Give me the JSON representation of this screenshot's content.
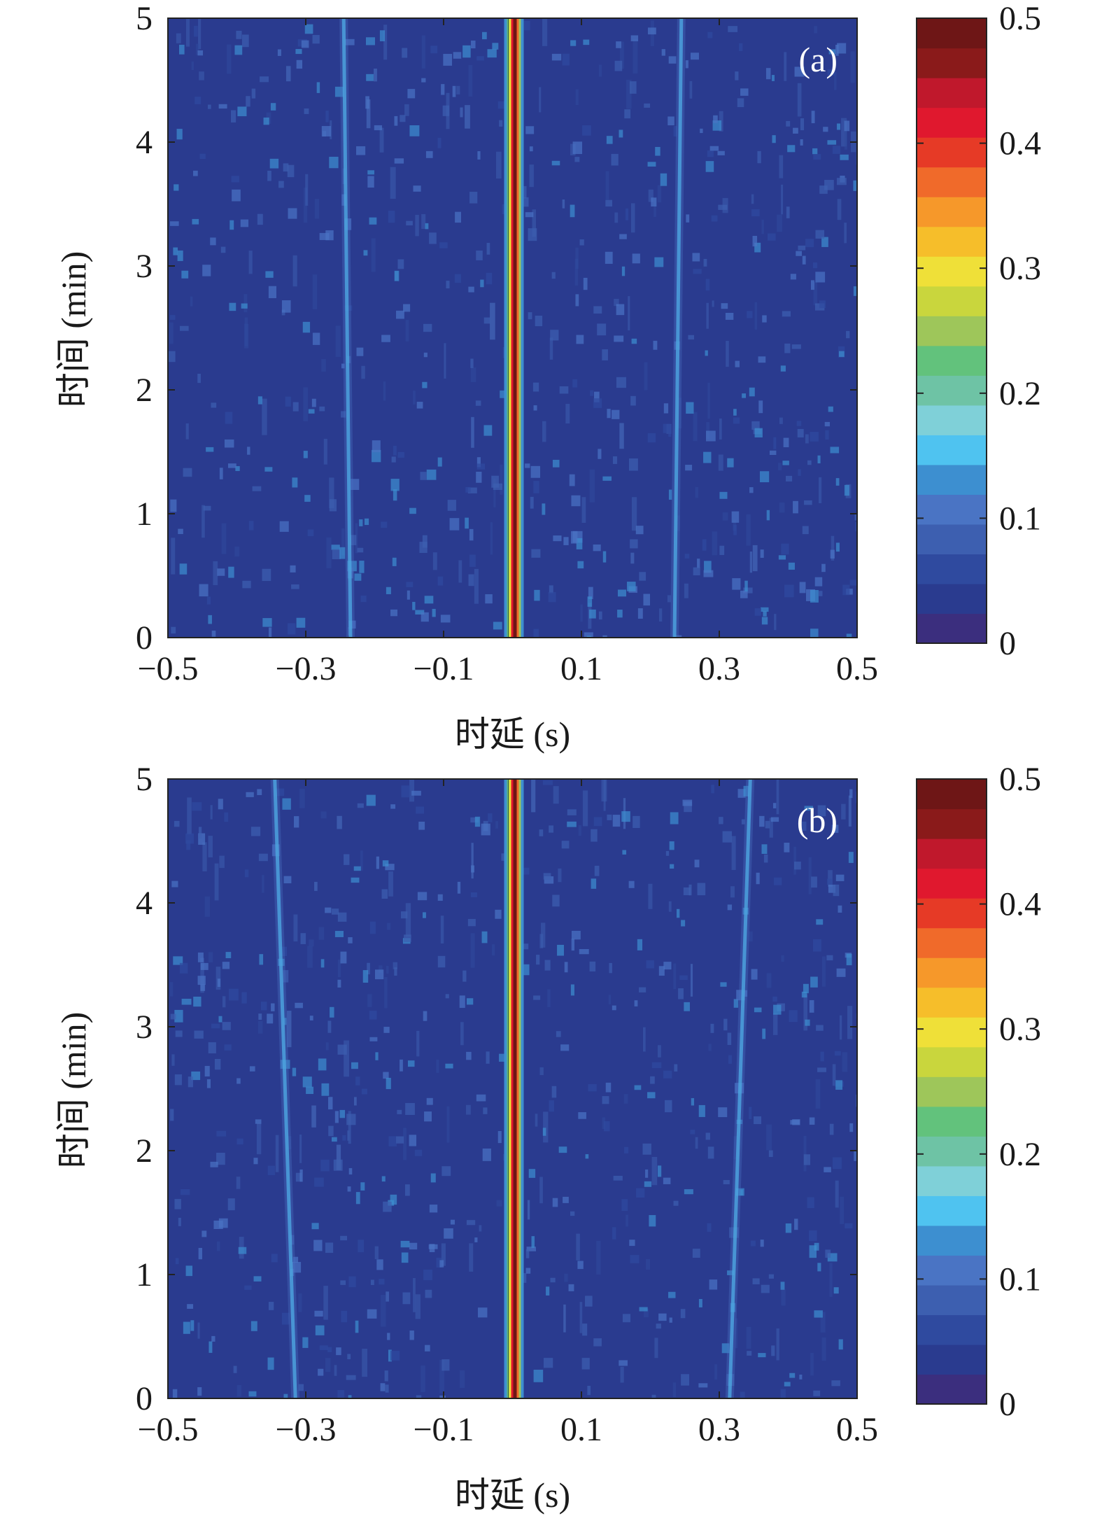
{
  "chart_data": [
    {
      "type": "heatmap",
      "panel_label": "(a)",
      "title": "",
      "xlabel": "时延 (s)",
      "ylabel": "时间 (min)",
      "xlim": [
        -0.5,
        0.5
      ],
      "ylim": [
        0,
        5
      ],
      "x_ticks": [
        -0.5,
        -0.3,
        -0.1,
        0.1,
        0.3,
        0.5
      ],
      "x_tick_labels": [
        "−0.5",
        "−0.3",
        "−0.1",
        "0.1",
        "0.3",
        "0.5"
      ],
      "y_ticks": [
        0,
        1,
        2,
        3,
        4,
        5
      ],
      "y_tick_labels": [
        "0",
        "1",
        "2",
        "3",
        "4",
        "5"
      ],
      "colorbar": {
        "range": [
          0,
          0.5
        ],
        "ticks": [
          0,
          0.1,
          0.2,
          0.3,
          0.4,
          0.5
        ],
        "tick_labels": [
          "0",
          "0.1",
          "0.2",
          "0.3",
          "0.4",
          "0.5"
        ]
      },
      "ridges": [
        {
          "name": "",
          "peak": 0.5,
          "points": [
            [
              0.0,
              0
            ],
            [
              0.0,
              5
            ]
          ]
        },
        {
          "name": "",
          "peak": 0.12,
          "points": [
            [
              -0.235,
              0
            ],
            [
              -0.24,
              2.5
            ],
            [
              -0.245,
              5
            ]
          ]
        },
        {
          "name": "",
          "peak": 0.12,
          "points": [
            [
              0.235,
              0
            ],
            [
              0.24,
              2.5
            ],
            [
              0.245,
              5
            ]
          ]
        }
      ]
    },
    {
      "type": "heatmap",
      "panel_label": "(b)",
      "title": "",
      "xlabel": "时延 (s)",
      "ylabel": "时间 (min)",
      "xlim": [
        -0.5,
        0.5
      ],
      "ylim": [
        0,
        5
      ],
      "x_ticks": [
        -0.5,
        -0.3,
        -0.1,
        0.1,
        0.3,
        0.5
      ],
      "x_tick_labels": [
        "−0.5",
        "−0.3",
        "−0.1",
        "0.1",
        "0.3",
        "0.5"
      ],
      "y_ticks": [
        0,
        1,
        2,
        3,
        4,
        5
      ],
      "y_tick_labels": [
        "0",
        "1",
        "2",
        "3",
        "4",
        "5"
      ],
      "colorbar": {
        "range": [
          0,
          0.5
        ],
        "ticks": [
          0,
          0.1,
          0.2,
          0.3,
          0.4,
          0.5
        ],
        "tick_labels": [
          "0",
          "0.1",
          "0.2",
          "0.3",
          "0.4",
          "0.5"
        ]
      },
      "ridges": [
        {
          "name": "",
          "peak": 0.5,
          "points": [
            [
              0.0,
              0
            ],
            [
              0.0,
              5
            ]
          ]
        },
        {
          "name": "",
          "peak": 0.12,
          "points": [
            [
              -0.315,
              0
            ],
            [
              -0.33,
              2.5
            ],
            [
              -0.345,
              5
            ]
          ]
        },
        {
          "name": "",
          "peak": 0.12,
          "points": [
            [
              0.315,
              0
            ],
            [
              0.33,
              2.5
            ],
            [
              0.345,
              5
            ]
          ]
        }
      ]
    }
  ],
  "colors": {
    "colormap": [
      "#3b2e7e",
      "#2a3b8f",
      "#2f4a9f",
      "#3d5fb0",
      "#4a74c4",
      "#3d8fd0",
      "#4fc3f0",
      "#7fd0d8",
      "#6ec3a5",
      "#62c27c",
      "#9ec65a",
      "#c9d63d",
      "#efe038",
      "#f6be2a",
      "#f6982a",
      "#f06a2a",
      "#e63a26",
      "#e0182e",
      "#c0182c",
      "#8a1a1a",
      "#6e1616"
    ]
  }
}
